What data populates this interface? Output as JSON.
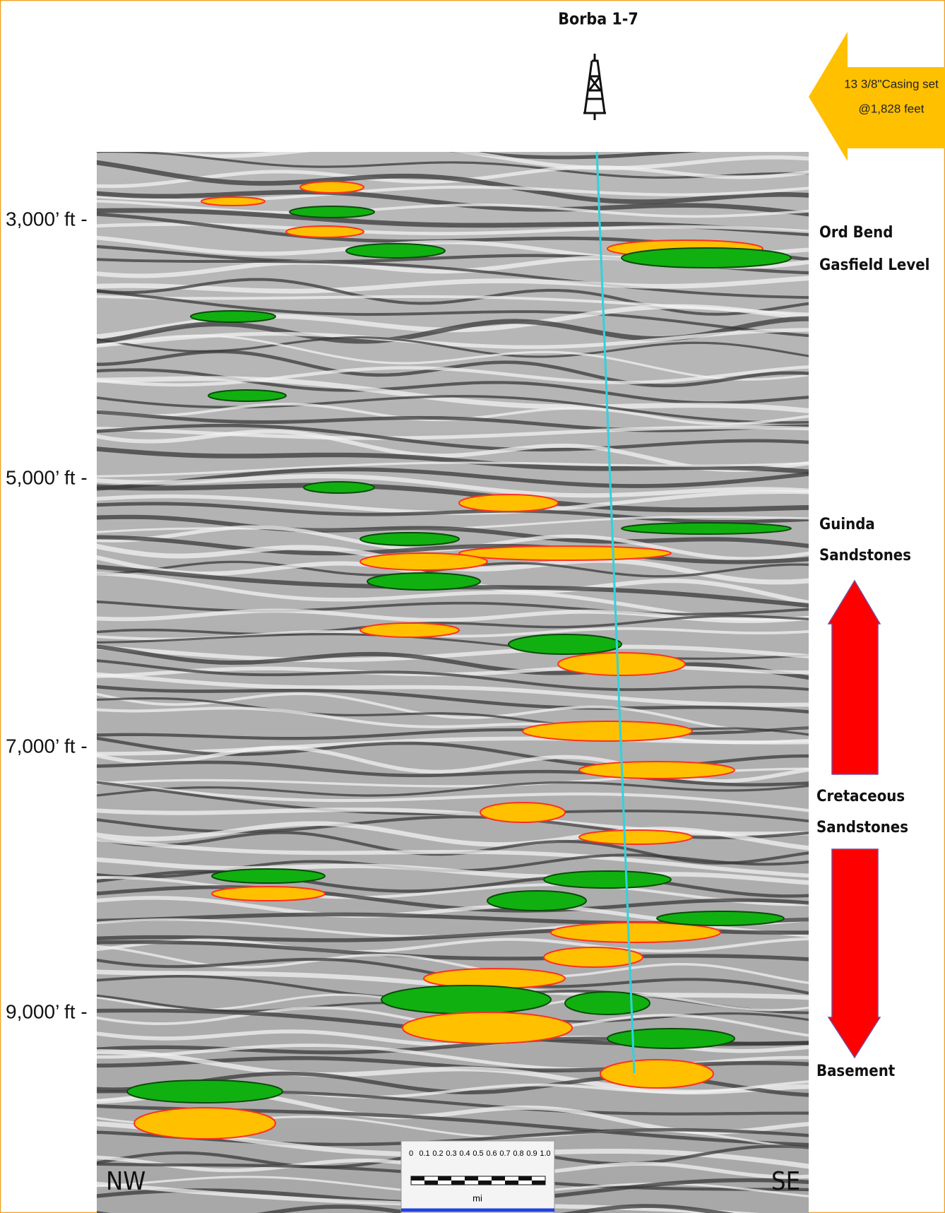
{
  "title": "Borba 1-7",
  "casing_note": [
    "13 3/8\"Casing set",
    "@1,828 feet"
  ],
  "depth_labels": [
    "3,000’ ft -",
    "5,000’ ft -",
    "7,000’ ft -",
    "9,000’ ft -"
  ],
  "formations": [
    {
      "lines": [
        "Ord Bend",
        "Gasfield Level"
      ]
    },
    {
      "lines": [
        "Guinda",
        "Sandstones"
      ]
    },
    {
      "lines": [
        "Cretaceous",
        "Sandstones"
      ]
    },
    {
      "lines": [
        "Basement"
      ]
    }
  ],
  "directions": [
    "NW",
    "SE"
  ],
  "scale_bar": {
    "ticks": [
      "0",
      "0.1",
      "0.2",
      "0.3",
      "0.4",
      "0.5",
      "0.6",
      "0.7",
      "0.8",
      "0.9",
      "1.0"
    ],
    "unit": "mi"
  }
}
